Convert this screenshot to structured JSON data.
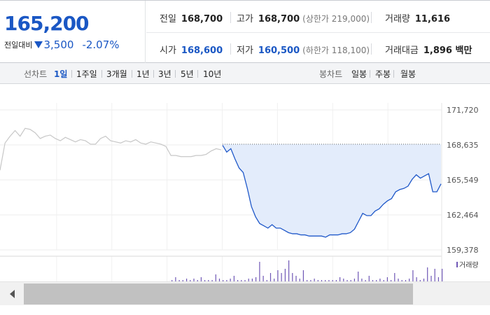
{
  "quote": {
    "price": "165,200",
    "change_label": "전일대비",
    "change_amount": "3,500",
    "change_percent": "-2.07%",
    "direction_icon": "down-triangle-icon"
  },
  "stats": {
    "prev_close": {
      "label": "전일",
      "value": "168,700"
    },
    "high": {
      "label": "고가",
      "value": "168,700",
      "sub": "(상한가 219,000)"
    },
    "volume": {
      "label": "거래량",
      "value": "11,616"
    },
    "open": {
      "label": "시가",
      "value": "168,600"
    },
    "low": {
      "label": "저가",
      "value": "160,500",
      "sub": "(하한가 118,100)"
    },
    "turnover": {
      "label": "거래대금",
      "value": "1,896 백만"
    }
  },
  "toolbar": {
    "line_chart_label": "선차트",
    "periods": [
      "1일",
      "1주일",
      "3개월",
      "1년",
      "3년",
      "5년",
      "10년"
    ],
    "active_period": "1일",
    "candle_chart_label": "봉차트",
    "candle_periods": [
      "일봉",
      "주봉",
      "월봉"
    ]
  },
  "colors": {
    "accent_blue": "#1a57c4",
    "area_fill": "#e3ecfb",
    "line_blue": "#1f58c9",
    "prev_line_gray": "#c7c7c7",
    "volume_purple": "#6f57b6"
  },
  "chart_data": {
    "type": "line",
    "title": "",
    "xlabel": "",
    "ylabel": "",
    "ylim": [
      159378,
      171720
    ],
    "yticks": [
      171720,
      168635,
      165549,
      162464,
      159378
    ],
    "ytick_labels": [
      "171,720",
      "168,635",
      "165,549",
      "162,464",
      "159,378"
    ],
    "reference_line": 168700,
    "grid": true,
    "series": [
      {
        "values": [
          166400,
          168800,
          169400,
          169900,
          169400,
          170100,
          170000,
          169700,
          169200,
          169400,
          169500,
          169200,
          169000,
          169300,
          169100,
          168900,
          169100,
          169000,
          168700,
          168700,
          169200,
          169400,
          169000,
          168900,
          168800,
          169000,
          168900,
          169100,
          168800,
          168700,
          168900,
          168800,
          168700,
          168500,
          167700,
          167700,
          167600,
          167600,
          167600,
          167700,
          167700,
          167800,
          168100,
          168300,
          168200
        ]
      },
      {
        "values": [
          168600,
          168000,
          168300,
          167400,
          166600,
          166200,
          164800,
          163200,
          162300,
          161700,
          161500,
          161300,
          161600,
          161300,
          161300,
          161100,
          160900,
          160800,
          160800,
          160700,
          160700,
          160600,
          160600,
          160600,
          160600,
          160500,
          160700,
          160700,
          160700,
          160800,
          160800,
          160900,
          161200,
          161900,
          162600,
          162400,
          162400,
          162800,
          163000,
          163400,
          163700,
          163900,
          164500,
          164700,
          164800,
          165000,
          165600,
          166000,
          165700,
          165900,
          166100,
          164500,
          164500,
          165200
        ]
      }
    ],
    "volume_label": "거래량",
    "volume": [
      0,
      0,
      0,
      0,
      0,
      0,
      0,
      0,
      0,
      0,
      0,
      0,
      0,
      0,
      0,
      0,
      0,
      0,
      0,
      0,
      0,
      0,
      0,
      0,
      0,
      0,
      0,
      0,
      0,
      0,
      0,
      0,
      0,
      0,
      0,
      0,
      0,
      0,
      0,
      0,
      0,
      0,
      0,
      0,
      0,
      0,
      0,
      1,
      3,
      1,
      1,
      2,
      1,
      2,
      1,
      3,
      1,
      1,
      1,
      5,
      2,
      1,
      1,
      2,
      4,
      1,
      1,
      1,
      2,
      2,
      3,
      14,
      4,
      1,
      6,
      2,
      8,
      6,
      9,
      15,
      6,
      4,
      2,
      8,
      1,
      1,
      2,
      1,
      1,
      1,
      1,
      1,
      1,
      3,
      2,
      1,
      1,
      2,
      7,
      2,
      1,
      4,
      1,
      1,
      2,
      1,
      3,
      1,
      6,
      2,
      1,
      1,
      2,
      8,
      3,
      1,
      2,
      10,
      4,
      9,
      3,
      9
    ]
  },
  "scrollbar": {
    "left_icon": "scroll-left-arrow-icon"
  }
}
